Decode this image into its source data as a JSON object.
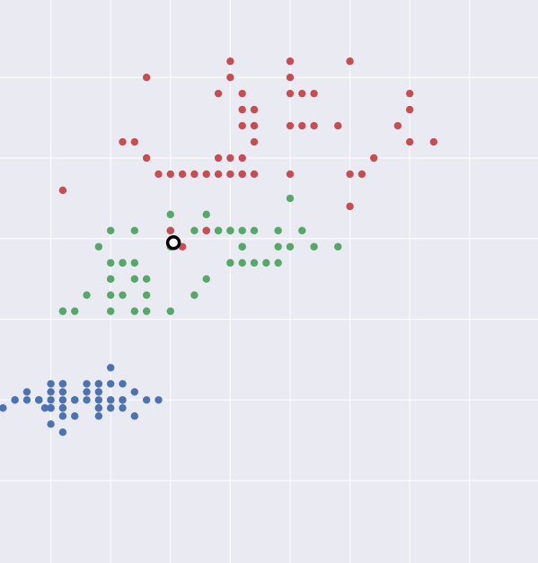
{
  "chart_data": {
    "type": "scatter",
    "title": "",
    "xlabel": "",
    "ylabel": "",
    "grid": true,
    "legend": "none",
    "xlim": [
      0,
      9
    ],
    "ylim": [
      0,
      7
    ],
    "xgrid": [
      1,
      2,
      3,
      4,
      5,
      6,
      7,
      8
    ],
    "ygrid": [
      1,
      2,
      3,
      4,
      5,
      6
    ],
    "colors": {
      "background": "#eaeaf2",
      "grid": "#ffffff",
      "setosa": "#4c72b0",
      "versicolor": "#55a868",
      "virginica": "#c44e52",
      "highlight": "#000000"
    },
    "series": [
      {
        "key": "setosa",
        "values": [
          [
            2.0,
            2.2
          ],
          [
            2.0,
            2.0
          ],
          [
            2.0,
            1.9
          ],
          [
            2.2,
            2.2
          ],
          [
            2.2,
            2.0
          ],
          [
            2.2,
            1.9
          ],
          [
            1.8,
            2.0
          ],
          [
            1.8,
            2.1
          ],
          [
            1.8,
            1.9
          ],
          [
            1.6,
            2.0
          ],
          [
            1.4,
            2.0
          ],
          [
            1.2,
            2.0
          ],
          [
            1.0,
            2.0
          ],
          [
            1.0,
            2.1
          ],
          [
            0.8,
            2.0
          ],
          [
            0.6,
            2.0
          ],
          [
            0.6,
            2.1
          ],
          [
            0.4,
            2.0
          ],
          [
            0.2,
            1.9
          ],
          [
            1.2,
            1.8
          ],
          [
            1.4,
            1.8
          ],
          [
            1.8,
            1.8
          ],
          [
            2.4,
            1.8
          ],
          [
            1.0,
            2.2
          ],
          [
            1.2,
            2.2
          ],
          [
            1.8,
            2.2
          ],
          [
            1.4,
            2.0
          ],
          [
            1.2,
            1.9
          ],
          [
            0.8,
            2.0
          ],
          [
            2.6,
            2.0
          ],
          [
            2.4,
            2.1
          ],
          [
            1.2,
            1.6
          ],
          [
            1.0,
            1.7
          ],
          [
            0.9,
            1.9
          ],
          [
            1.2,
            2.1
          ],
          [
            1.8,
            2.2
          ],
          [
            2.0,
            2.4
          ],
          [
            2.0,
            2.0
          ],
          [
            1.0,
            1.9
          ],
          [
            1.6,
            2.1
          ],
          [
            1.2,
            2.2
          ],
          [
            0.4,
            2.0
          ],
          [
            2.2,
            2.0
          ],
          [
            1.8,
            1.9
          ],
          [
            1.6,
            2.2
          ],
          [
            2.8,
            2.0
          ],
          [
            1.4,
            2.0
          ],
          [
            1.2,
            1.9
          ],
          [
            0.8,
            2.0
          ],
          [
            1.0,
            1.9
          ]
        ]
      },
      {
        "key": "versicolor",
        "values": [
          [
            3.0,
            4.3
          ],
          [
            3.6,
            4.3
          ],
          [
            3.0,
            4.1
          ],
          [
            3.6,
            4.1
          ],
          [
            3.8,
            4.1
          ],
          [
            4.0,
            4.1
          ],
          [
            4.4,
            4.1
          ],
          [
            4.8,
            4.1
          ],
          [
            5.2,
            4.1
          ],
          [
            2.4,
            4.1
          ],
          [
            2.0,
            4.1
          ],
          [
            1.8,
            3.9
          ],
          [
            4.2,
            3.9
          ],
          [
            4.8,
            3.9
          ],
          [
            5.0,
            3.9
          ],
          [
            5.4,
            3.9
          ],
          [
            5.8,
            3.9
          ],
          [
            4.0,
            3.7
          ],
          [
            4.2,
            3.7
          ],
          [
            4.4,
            3.7
          ],
          [
            4.8,
            3.7
          ],
          [
            2.0,
            3.7
          ],
          [
            2.2,
            3.7
          ],
          [
            2.4,
            3.7
          ],
          [
            2.0,
            3.5
          ],
          [
            2.4,
            3.5
          ],
          [
            2.6,
            3.5
          ],
          [
            3.6,
            3.5
          ],
          [
            2.0,
            3.3
          ],
          [
            2.2,
            3.3
          ],
          [
            1.6,
            3.3
          ],
          [
            1.2,
            3.1
          ],
          [
            1.4,
            3.1
          ],
          [
            2.0,
            3.1
          ],
          [
            2.4,
            3.1
          ],
          [
            2.6,
            3.1
          ],
          [
            3.0,
            3.1
          ],
          [
            5.0,
            4.5
          ],
          [
            4.0,
            4.1
          ],
          [
            4.2,
            4.1
          ],
          [
            3.8,
            4.1
          ],
          [
            3.4,
            4.1
          ],
          [
            4.6,
            3.7
          ],
          [
            3.4,
            3.3
          ],
          [
            2.2,
            3.7
          ],
          [
            2.6,
            3.3
          ],
          [
            4.2,
            3.9
          ],
          [
            2.0,
            3.5
          ],
          [
            1.2,
            3.1
          ],
          [
            3.0,
            3.9
          ]
        ]
      },
      {
        "key": "virginica",
        "values": [
          [
            4.0,
            6.2
          ],
          [
            5.0,
            6.2
          ],
          [
            6.0,
            6.2
          ],
          [
            2.6,
            6.0
          ],
          [
            4.0,
            6.0
          ],
          [
            5.0,
            6.0
          ],
          [
            3.8,
            5.8
          ],
          [
            4.2,
            5.8
          ],
          [
            5.0,
            5.8
          ],
          [
            5.2,
            5.8
          ],
          [
            5.4,
            5.8
          ],
          [
            7.0,
            5.8
          ],
          [
            4.2,
            5.6
          ],
          [
            4.4,
            5.6
          ],
          [
            7.0,
            5.6
          ],
          [
            4.2,
            5.4
          ],
          [
            5.0,
            5.4
          ],
          [
            5.2,
            5.4
          ],
          [
            5.4,
            5.4
          ],
          [
            5.8,
            5.4
          ],
          [
            6.8,
            5.4
          ],
          [
            4.4,
            5.2
          ],
          [
            7.0,
            5.2
          ],
          [
            7.4,
            5.2
          ],
          [
            2.2,
            5.2
          ],
          [
            2.4,
            5.2
          ],
          [
            2.6,
            5.0
          ],
          [
            4.0,
            5.0
          ],
          [
            4.2,
            5.0
          ],
          [
            6.4,
            5.0
          ],
          [
            2.8,
            4.8
          ],
          [
            3.0,
            4.8
          ],
          [
            3.2,
            4.8
          ],
          [
            3.4,
            4.8
          ],
          [
            3.6,
            4.8
          ],
          [
            3.8,
            4.8
          ],
          [
            4.0,
            4.8
          ],
          [
            4.2,
            4.8
          ],
          [
            4.4,
            4.8
          ],
          [
            5.0,
            4.8
          ],
          [
            6.0,
            4.8
          ],
          [
            6.2,
            4.8
          ],
          [
            1.2,
            4.6
          ],
          [
            6.0,
            4.4
          ],
          [
            3.0,
            4.1
          ],
          [
            3.6,
            4.1
          ],
          [
            3.2,
            3.9
          ],
          [
            4.2,
            4.8
          ],
          [
            3.8,
            5.0
          ],
          [
            4.4,
            5.4
          ]
        ]
      }
    ],
    "highlight": [
      3.05,
      3.95
    ]
  }
}
